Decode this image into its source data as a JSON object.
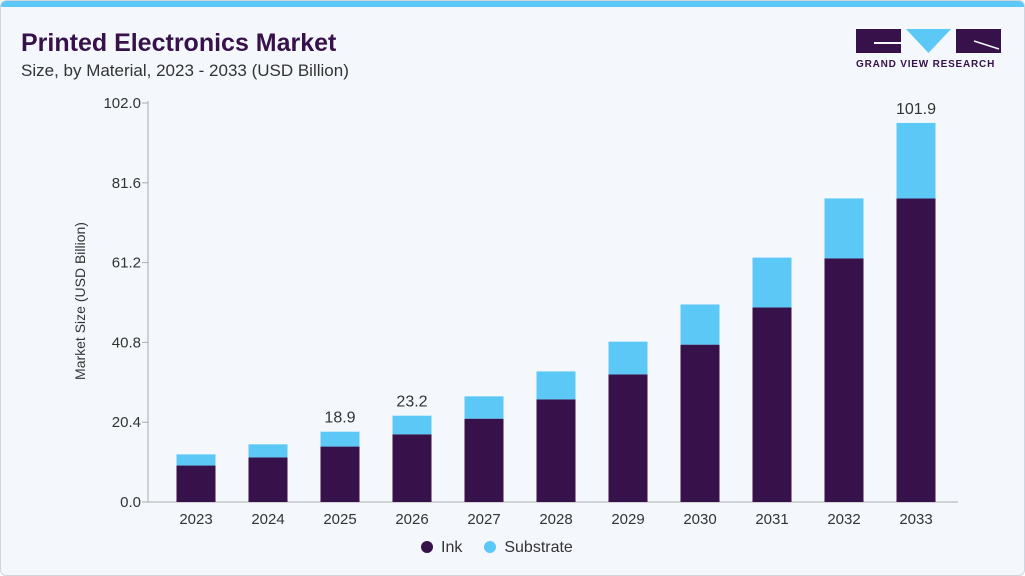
{
  "header": {
    "title": "Printed Electronics Market",
    "subtitle": "Size, by Material, 2023 - 2033 (USD Billion)",
    "logo_text": "GRAND VIEW RESEARCH"
  },
  "colors": {
    "ink": "#37114a",
    "substrate": "#5bc8f5"
  },
  "chart_data": {
    "type": "bar",
    "stacked": true,
    "categories": [
      "2023",
      "2024",
      "2025",
      "2026",
      "2027",
      "2028",
      "2029",
      "2030",
      "2031",
      "2032",
      "2033"
    ],
    "series": [
      {
        "name": "Ink",
        "values": [
          9.8,
          12.0,
          14.9,
          18.2,
          22.4,
          27.6,
          34.3,
          42.3,
          52.3,
          65.5,
          81.6
        ]
      },
      {
        "name": "Substrate",
        "values": [
          3.0,
          3.5,
          4.0,
          5.0,
          6.0,
          7.5,
          8.8,
          10.8,
          13.4,
          16.1,
          20.3
        ]
      }
    ],
    "data_labels": {
      "2025": "18.9",
      "2026": "23.2",
      "2033": "101.9"
    },
    "ylabel": "Market Size (USD Billion)",
    "xlabel": "",
    "yticks": [
      "0.0",
      "20.4",
      "40.8",
      "61.2",
      "81.6",
      "102.0"
    ],
    "ylim": [
      0,
      102
    ],
    "grid": false,
    "legend": "bottom"
  }
}
